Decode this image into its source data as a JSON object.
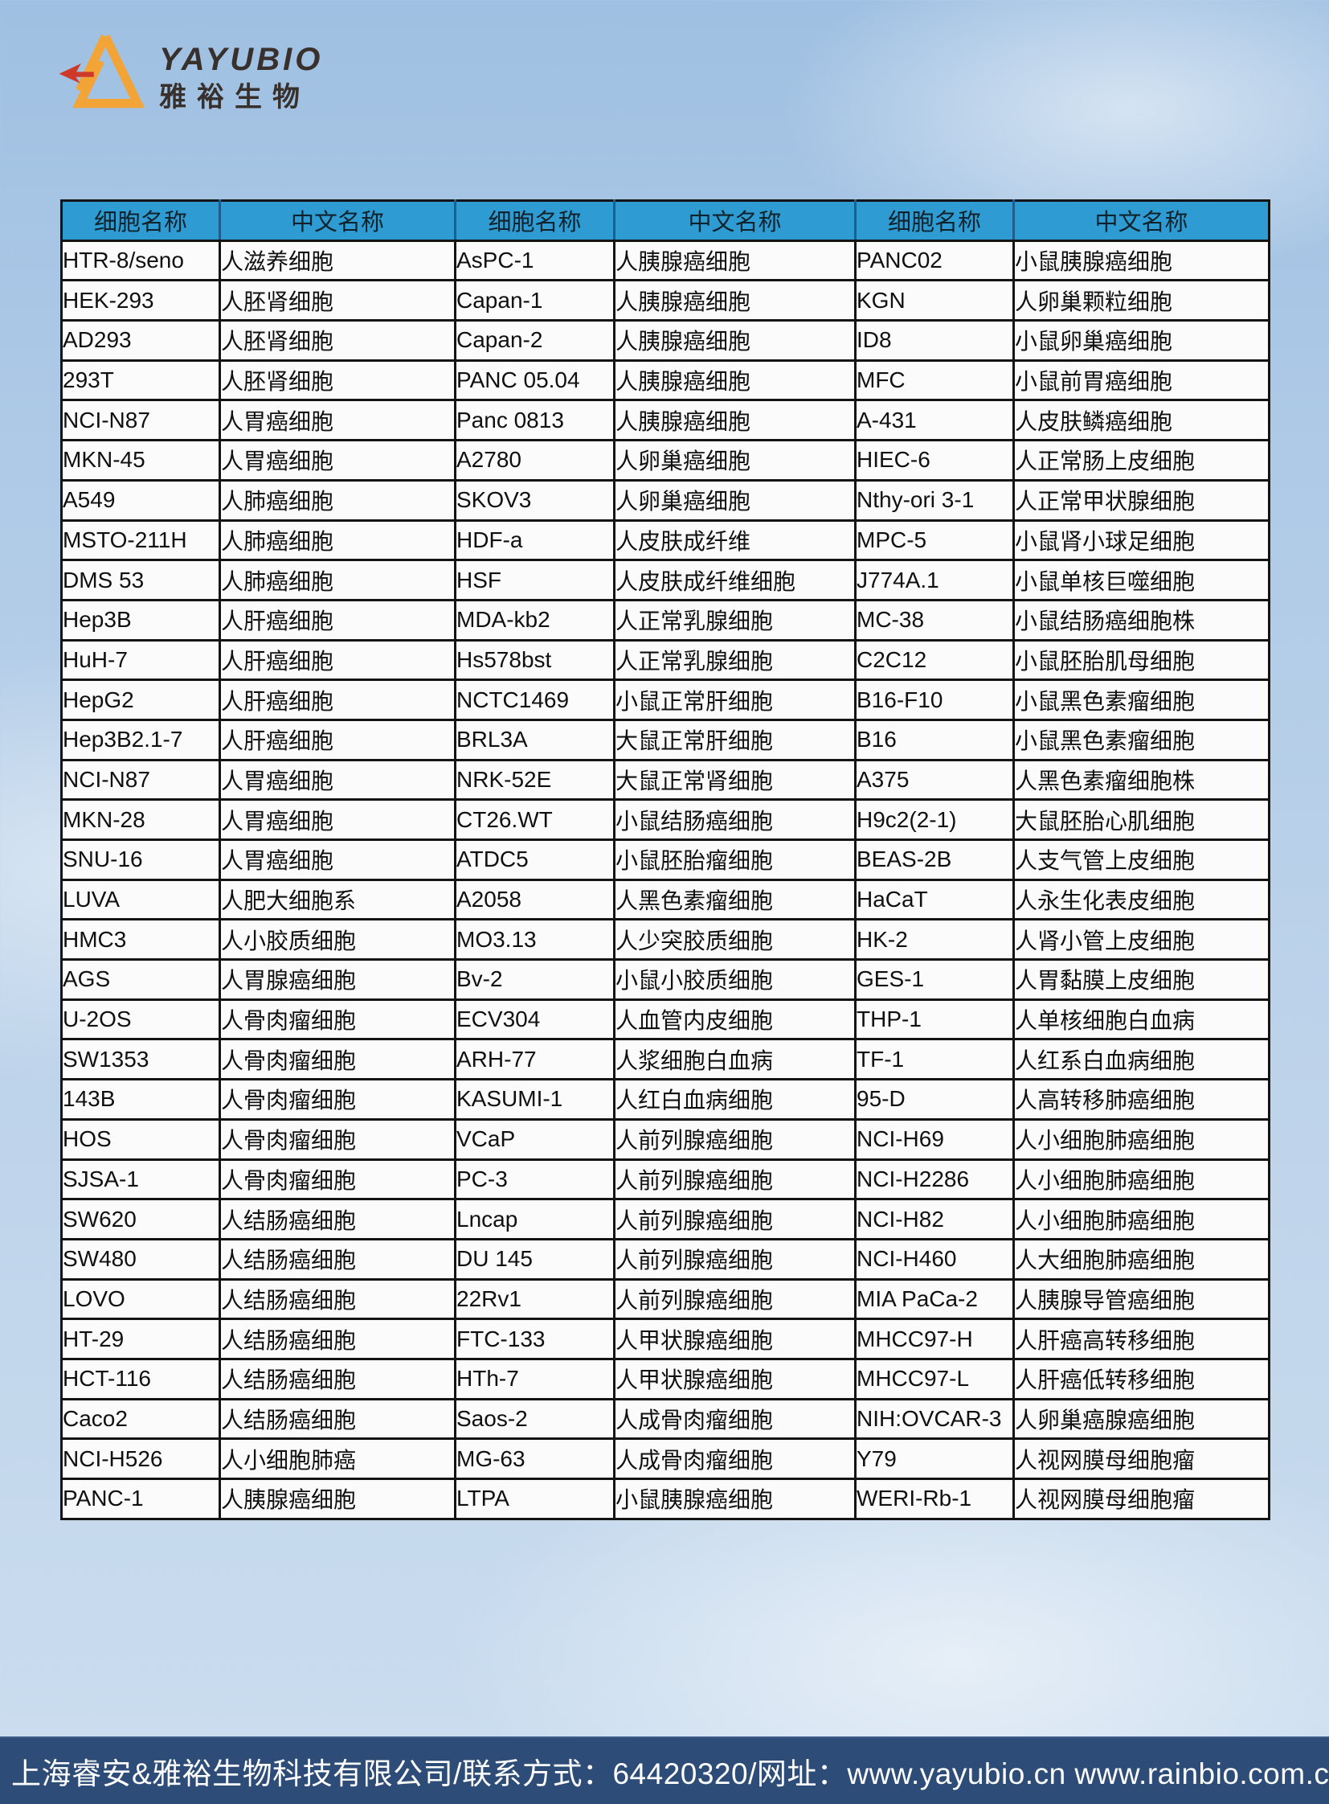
{
  "logo": {
    "brand": "YAYUBIO",
    "brand_cn": "雅裕生物"
  },
  "table": {
    "header": {
      "name_label": "细胞名称",
      "cn_label": "中文名称"
    },
    "groups": [
      [
        {
          "name": "HTR-8/seno",
          "cn": "人滋养细胞"
        },
        {
          "name": "HEK-293",
          "cn": "人胚肾细胞"
        },
        {
          "name": "AD293",
          "cn": "人胚肾细胞"
        },
        {
          "name": "293T",
          "cn": "人胚肾细胞"
        },
        {
          "name": "NCI-N87",
          "cn": "人胃癌细胞"
        },
        {
          "name": "MKN-45",
          "cn": "人胃癌细胞"
        },
        {
          "name": "A549",
          "cn": "人肺癌细胞"
        },
        {
          "name": "MSTO-211H",
          "cn": "人肺癌细胞"
        },
        {
          "name": "DMS 53",
          "cn": "人肺癌细胞"
        },
        {
          "name": "Hep3B",
          "cn": "人肝癌细胞"
        },
        {
          "name": "HuH-7",
          "cn": "人肝癌细胞"
        },
        {
          "name": "HepG2",
          "cn": "人肝癌细胞"
        },
        {
          "name": "Hep3B2.1-7",
          "cn": "人肝癌细胞"
        },
        {
          "name": "NCI-N87",
          "cn": "人胃癌细胞"
        },
        {
          "name": "MKN-28",
          "cn": "人胃癌细胞"
        },
        {
          "name": "SNU-16",
          "cn": "人胃癌细胞"
        },
        {
          "name": "LUVA",
          "cn": "人肥大细胞系"
        },
        {
          "name": "HMC3",
          "cn": "人小胶质细胞"
        },
        {
          "name": "AGS",
          "cn": "人胃腺癌细胞"
        },
        {
          "name": "U-2OS",
          "cn": "人骨肉瘤细胞"
        },
        {
          "name": "SW1353",
          "cn": "人骨肉瘤细胞"
        },
        {
          "name": "143B",
          "cn": "人骨肉瘤细胞"
        },
        {
          "name": "HOS",
          "cn": "人骨肉瘤细胞"
        },
        {
          "name": "SJSA-1",
          "cn": "人骨肉瘤细胞"
        },
        {
          "name": "SW620",
          "cn": "人结肠癌细胞"
        },
        {
          "name": "SW480",
          "cn": "人结肠癌细胞"
        },
        {
          "name": "LOVO",
          "cn": "人结肠癌细胞"
        },
        {
          "name": "HT-29",
          "cn": "人结肠癌细胞"
        },
        {
          "name": "HCT-116",
          "cn": "人结肠癌细胞"
        },
        {
          "name": "Caco2",
          "cn": "人结肠癌细胞"
        },
        {
          "name": "NCI-H526",
          "cn": "人小细胞肺癌"
        },
        {
          "name": "PANC-1",
          "cn": "人胰腺癌细胞"
        }
      ],
      [
        {
          "name": "AsPC-1",
          "cn": "人胰腺癌细胞"
        },
        {
          "name": "Capan-1",
          "cn": "人胰腺癌细胞"
        },
        {
          "name": "Capan-2",
          "cn": "人胰腺癌细胞"
        },
        {
          "name": "PANC 05.04",
          "cn": "人胰腺癌细胞"
        },
        {
          "name": "Panc 0813",
          "cn": "人胰腺癌细胞"
        },
        {
          "name": "A2780",
          "cn": "人卵巢癌细胞"
        },
        {
          "name": "SKOV3",
          "cn": "人卵巢癌细胞"
        },
        {
          "name": "HDF-a",
          "cn": "人皮肤成纤维"
        },
        {
          "name": "HSF",
          "cn": "人皮肤成纤维细胞"
        },
        {
          "name": "MDA-kb2",
          "cn": "人正常乳腺细胞"
        },
        {
          "name": "Hs578bst",
          "cn": "人正常乳腺细胞"
        },
        {
          "name": "NCTC1469",
          "cn": "小鼠正常肝细胞"
        },
        {
          "name": "BRL3A",
          "cn": "大鼠正常肝细胞"
        },
        {
          "name": "NRK-52E",
          "cn": "大鼠正常肾细胞"
        },
        {
          "name": "CT26.WT",
          "cn": "小鼠结肠癌细胞"
        },
        {
          "name": "ATDC5",
          "cn": "小鼠胚胎瘤细胞"
        },
        {
          "name": "A2058",
          "cn": "人黑色素瘤细胞"
        },
        {
          "name": "MO3.13",
          "cn": "人少突胶质细胞"
        },
        {
          "name": "Bv-2",
          "cn": "小鼠小胶质细胞"
        },
        {
          "name": "ECV304",
          "cn": "人血管内皮细胞"
        },
        {
          "name": "ARH-77",
          "cn": "人浆细胞白血病"
        },
        {
          "name": "KASUMI-1",
          "cn": "人红白血病细胞"
        },
        {
          "name": "VCaP",
          "cn": "人前列腺癌细胞"
        },
        {
          "name": "PC-3",
          "cn": "人前列腺癌细胞"
        },
        {
          "name": "Lncap",
          "cn": "人前列腺癌细胞"
        },
        {
          "name": "DU 145",
          "cn": "人前列腺癌细胞"
        },
        {
          "name": "22Rv1",
          "cn": "人前列腺癌细胞"
        },
        {
          "name": "FTC-133",
          "cn": "人甲状腺癌细胞"
        },
        {
          "name": "HTh-7",
          "cn": "人甲状腺癌细胞"
        },
        {
          "name": "Saos-2",
          "cn": "人成骨肉瘤细胞"
        },
        {
          "name": "MG-63",
          "cn": "人成骨肉瘤细胞"
        },
        {
          "name": "LTPA",
          "cn": "小鼠胰腺癌细胞"
        }
      ],
      [
        {
          "name": "PANC02",
          "cn": "小鼠胰腺癌细胞"
        },
        {
          "name": "KGN",
          "cn": "人卵巢颗粒细胞"
        },
        {
          "name": "ID8",
          "cn": "小鼠卵巢癌细胞"
        },
        {
          "name": "MFC",
          "cn": "小鼠前胃癌细胞"
        },
        {
          "name": "A-431",
          "cn": "人皮肤鳞癌细胞"
        },
        {
          "name": "HIEC-6",
          "cn": "人正常肠上皮细胞"
        },
        {
          "name": "Nthy-ori 3-1",
          "cn": "人正常甲状腺细胞"
        },
        {
          "name": "MPC-5",
          "cn": "小鼠肾小球足细胞"
        },
        {
          "name": "J774A.1",
          "cn": "小鼠单核巨噬细胞"
        },
        {
          "name": "MC-38",
          "cn": "小鼠结肠癌细胞株"
        },
        {
          "name": "C2C12",
          "cn": "小鼠胚胎肌母细胞"
        },
        {
          "name": "B16-F10",
          "cn": "小鼠黑色素瘤细胞"
        },
        {
          "name": "B16",
          "cn": "小鼠黑色素瘤细胞"
        },
        {
          "name": "A375",
          "cn": "人黑色素瘤细胞株"
        },
        {
          "name": "H9c2(2-1)",
          "cn": "大鼠胚胎心肌细胞"
        },
        {
          "name": "BEAS-2B",
          "cn": "人支气管上皮细胞"
        },
        {
          "name": "HaCaT",
          "cn": "人永生化表皮细胞"
        },
        {
          "name": "HK-2",
          "cn": "人肾小管上皮细胞"
        },
        {
          "name": "GES-1",
          "cn": "人胃黏膜上皮细胞"
        },
        {
          "name": "THP-1",
          "cn": "人单核细胞白血病"
        },
        {
          "name": "TF-1",
          "cn": "人红系白血病细胞"
        },
        {
          "name": "95-D",
          "cn": "人高转移肺癌细胞"
        },
        {
          "name": "NCI-H69",
          "cn": "人小细胞肺癌细胞"
        },
        {
          "name": "NCI-H2286",
          "cn": "人小细胞肺癌细胞"
        },
        {
          "name": "NCI-H82",
          "cn": "人小细胞肺癌细胞"
        },
        {
          "name": "NCI-H460",
          "cn": "人大细胞肺癌细胞"
        },
        {
          "name": "MIA PaCa-2",
          "cn": "人胰腺导管癌细胞"
        },
        {
          "name": "MHCC97-H",
          "cn": "人肝癌高转移细胞"
        },
        {
          "name": "MHCC97-L",
          "cn": "人肝癌低转移细胞"
        },
        {
          "name": "NIH:OVCAR-3",
          "cn": "人卵巢癌腺癌细胞"
        },
        {
          "name": "Y79",
          "cn": "人视网膜母细胞瘤"
        },
        {
          "name": "WERI-Rb-1",
          "cn": "人视网膜母细胞瘤"
        }
      ]
    ]
  },
  "footer": {
    "text": "上海睿安&雅裕生物科技有限公司/联系方式：64420320/网址：www.yayubio.cn  www.rainbio.com.cn"
  },
  "colors": {
    "header_bg": "#2E9BD2",
    "header_divider": "#1D5E8F",
    "table_border": "#141414",
    "cell_bg": "#FBFBFB",
    "footer_bg": "#2D4C77",
    "footer_text": "#FFFFFF",
    "logo_orange": "#F2A437",
    "logo_red": "#CE3A2A",
    "logo_text": "#38302C"
  }
}
